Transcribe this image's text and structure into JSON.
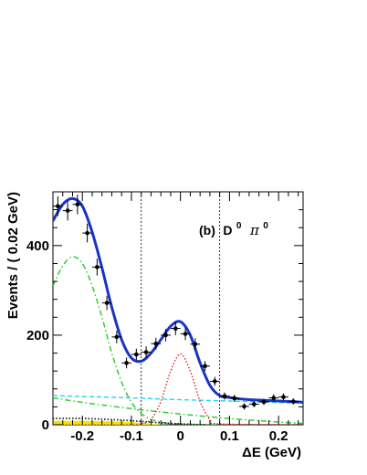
{
  "chart_data": {
    "type": "scatter",
    "title": "",
    "annotation": {
      "label": "(b)",
      "particle": "D",
      "particle_sup": "0",
      "pion": "π",
      "pion_sup": "0"
    },
    "xlabel": "ΔE (GeV)",
    "ylabel": "Events / ( 0.02  GeV)",
    "xlim": [
      -0.26,
      0.25
    ],
    "ylim": [
      0,
      520
    ],
    "x_ticks": [
      -0.2,
      -0.1,
      0,
      0.1,
      0.2
    ],
    "x_tick_labels": [
      "-0.2",
      "-0.1",
      "0",
      "0.1",
      "0.2"
    ],
    "y_ticks": [
      0,
      200,
      400
    ],
    "y_tick_labels": [
      "0",
      "200",
      "400"
    ],
    "vertical_cut_lines": [
      -0.08,
      0.08
    ],
    "data_points": {
      "x": [
        -0.25,
        -0.23,
        -0.21,
        -0.19,
        -0.17,
        -0.15,
        -0.13,
        -0.11,
        -0.09,
        -0.07,
        -0.05,
        -0.03,
        -0.01,
        0.01,
        0.03,
        0.05,
        0.07,
        0.09,
        0.11,
        0.13,
        0.15,
        0.17,
        0.19,
        0.21,
        0.23
      ],
      "y": [
        488,
        478,
        492,
        428,
        352,
        272,
        196,
        138,
        157,
        162,
        181,
        200,
        215,
        203,
        180,
        131,
        97,
        64,
        59,
        41,
        46,
        51,
        60,
        62,
        52
      ],
      "yerr": [
        22,
        22,
        22,
        21,
        19,
        16,
        14,
        12,
        13,
        13,
        13,
        14,
        15,
        14,
        13,
        11,
        10,
        8,
        8,
        7,
        7,
        7,
        8,
        8,
        7
      ],
      "xerr": 0.01
    },
    "series": [
      {
        "name": "",
        "color": "#1a35c4",
        "style": "solid",
        "x": [
          -0.26,
          -0.24,
          -0.22,
          -0.2,
          -0.18,
          -0.16,
          -0.14,
          -0.12,
          -0.1,
          -0.08,
          -0.06,
          -0.04,
          -0.02,
          0.0,
          0.02,
          0.04,
          0.06,
          0.08,
          0.1,
          0.12,
          0.14,
          0.16,
          0.18,
          0.2,
          0.22,
          0.24,
          0.25
        ],
        "y": [
          455,
          492,
          505,
          488,
          430,
          350,
          262,
          190,
          149,
          142,
          160,
          190,
          220,
          230,
          200,
          138,
          88,
          65,
          61,
          58,
          56,
          55,
          54,
          53,
          52,
          51,
          50
        ]
      },
      {
        "name": "",
        "color": "#e02020",
        "style": "dotted",
        "x": [
          -0.26,
          -0.1,
          -0.08,
          -0.06,
          -0.04,
          -0.02,
          0.0,
          0.02,
          0.04,
          0.06,
          0.08,
          0.25
        ],
        "y": [
          0,
          0,
          2,
          12,
          52,
          120,
          158,
          120,
          52,
          12,
          2,
          0
        ]
      },
      {
        "name": "",
        "color": "#22cc22",
        "style": "dashdot",
        "x": [
          -0.26,
          -0.24,
          -0.22,
          -0.2,
          -0.18,
          -0.16,
          -0.14,
          -0.12,
          -0.1,
          -0.08,
          -0.06,
          -0.04,
          -0.02,
          0.0,
          0.02,
          0.04,
          0.06,
          0.08
        ],
        "y": [
          310,
          355,
          375,
          360,
          310,
          240,
          160,
          95,
          50,
          25,
          12,
          6,
          3,
          2,
          1,
          0.5,
          0.2,
          0
        ]
      },
      {
        "name": "",
        "color": "#22cc22",
        "style": "dashdot",
        "x": [
          -0.26,
          -0.2,
          -0.1,
          0.0,
          0.1,
          0.2,
          0.25
        ],
        "y": [
          60,
          50,
          36,
          24,
          14,
          6,
          3
        ]
      },
      {
        "name": "",
        "color": "#22d8ee",
        "style": "dashed",
        "x": [
          -0.26,
          -0.1,
          0.0,
          0.1,
          0.25
        ],
        "y": [
          65,
          60,
          56,
          53,
          48
        ]
      },
      {
        "name": "",
        "color": "#111111",
        "style": "dotted",
        "x": [
          -0.26,
          -0.2,
          -0.15,
          -0.1,
          -0.05,
          0.0,
          0.05
        ],
        "y": [
          14,
          14,
          12,
          9,
          5,
          2,
          0
        ]
      }
    ],
    "filled_area": {
      "color": "#f2e600",
      "x": [
        -0.26,
        -0.2,
        -0.15,
        -0.1,
        -0.07,
        -0.05,
        -0.03
      ],
      "y": [
        9,
        9,
        8,
        6,
        3,
        1,
        0
      ]
    }
  }
}
